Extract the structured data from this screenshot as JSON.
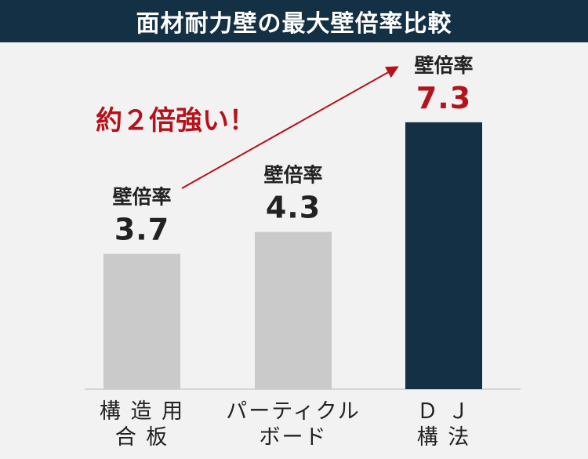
{
  "header": {
    "title": "面材耐力壁の最大壁倍率比較"
  },
  "chart_data": {
    "type": "bar",
    "categories": [
      "構造用合板",
      "パーティクルボード",
      "DJ構法"
    ],
    "category_lines": [
      [
        "構 造 用",
        "合 板"
      ],
      [
        "パーティクル",
        "ボード"
      ],
      [
        "Ｄ Ｊ",
        "構 法"
      ]
    ],
    "series": [
      {
        "values": [
          3.7,
          4.3,
          7.3
        ]
      }
    ],
    "value_caption": "壁倍率",
    "value_labels": [
      "3.7",
      "4.3",
      "7.3"
    ],
    "annotation": "約２倍強い！",
    "ylim": [
      0,
      8
    ],
    "bar_colors": [
      "#c9cac9",
      "#c9cac9",
      "#143044"
    ],
    "highlight_value_color": "#b5121b",
    "annotation_color": "#b5121b",
    "arrow_color": "#b5121b"
  }
}
